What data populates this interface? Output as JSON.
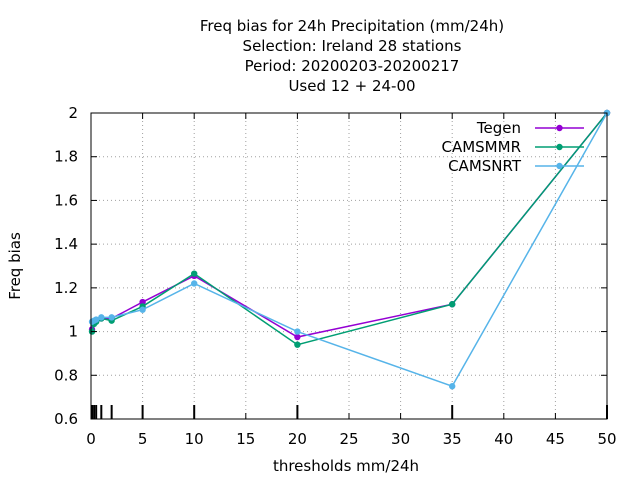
{
  "chart_data": {
    "type": "line",
    "title_lines": [
      "Freq bias  for 24h Precipitation (mm/24h)",
      "Selection: Ireland     28 stations",
      "Period: 20200203-20200217",
      "Used  12 + 24-00"
    ],
    "xlabel": "thresholds mm/24h",
    "ylabel": "Freq bias",
    "xlim": [
      0,
      50
    ],
    "ylim": [
      0.6,
      2.0
    ],
    "xticks": [
      0,
      5,
      10,
      15,
      20,
      25,
      30,
      35,
      40,
      45,
      50
    ],
    "yticks": [
      0.6,
      0.8,
      1.0,
      1.2,
      1.4,
      1.6,
      1.8,
      2.0
    ],
    "ytick_labels": [
      "0.6",
      "0.8",
      "1",
      "1.2",
      "1.4",
      "1.6",
      "1.8",
      "2"
    ],
    "grid": true,
    "legend_position": "top-right",
    "threshold_markers": [
      0.1,
      0.3,
      0.5,
      1,
      2,
      5,
      10,
      20,
      35,
      50
    ],
    "series": [
      {
        "name": "Tegen",
        "color": "#9400d3",
        "x": [
          0.1,
          0.3,
          0.5,
          1,
          2,
          5,
          10,
          20,
          35,
          50
        ],
        "y": [
          1.01,
          1.04,
          1.05,
          1.06,
          1.06,
          1.135,
          1.255,
          0.975,
          1.125,
          2.0
        ]
      },
      {
        "name": "CAMSMMR",
        "color": "#009e73",
        "x": [
          0.1,
          0.3,
          0.5,
          1,
          2,
          5,
          10,
          20,
          35,
          50
        ],
        "y": [
          1.0,
          1.035,
          1.045,
          1.06,
          1.05,
          1.115,
          1.265,
          0.94,
          1.125,
          2.0
        ]
      },
      {
        "name": "CAMSNRT",
        "color": "#56b4e9",
        "x": [
          0.1,
          0.3,
          0.5,
          1,
          2,
          5,
          10,
          20,
          35,
          50
        ],
        "y": [
          1.045,
          1.05,
          1.055,
          1.065,
          1.065,
          1.1,
          1.22,
          1.0,
          0.75,
          2.0
        ]
      }
    ]
  }
}
